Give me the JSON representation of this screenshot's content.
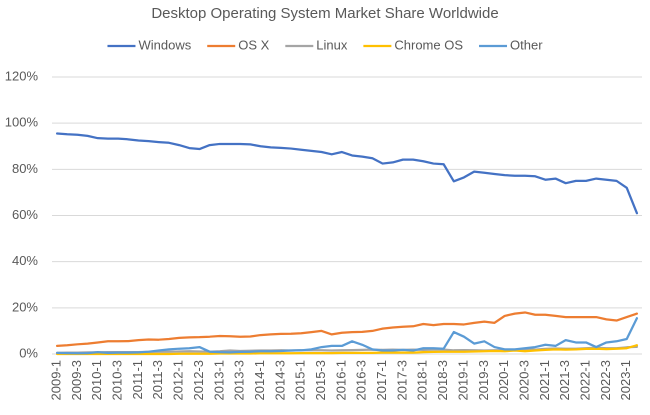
{
  "chart_data": {
    "type": "line",
    "title": "Desktop Operating System Market Share Worldwide",
    "categories": [
      "2009-1",
      null,
      "2009-3",
      null,
      "2010-1",
      null,
      "2010-3",
      null,
      "2011-1",
      null,
      "2011-3",
      null,
      "2012-1",
      null,
      "2012-3",
      null,
      "2013-1",
      null,
      "2013-3",
      null,
      "2014-1",
      null,
      "2014-3",
      null,
      "2015-1",
      null,
      "2015-3",
      null,
      "2016-1",
      null,
      "2016-3",
      null,
      "2017-1",
      null,
      "2017-3",
      null,
      "2018-1",
      null,
      "2018-3",
      null,
      "2019-1",
      null,
      "2019-3",
      null,
      "2020-1",
      null,
      "2020-3",
      null,
      "2021-1",
      null,
      "2021-3",
      null,
      "2022-1",
      null,
      "2022-3",
      null,
      "2023-1",
      null
    ],
    "series": [
      {
        "name": "Windows",
        "color": "#4472c4",
        "values": [
          95.5,
          95.2,
          95,
          94.5,
          93.5,
          93.3,
          93.3,
          93,
          92.5,
          92.2,
          91.8,
          91.5,
          90.5,
          89.2,
          88.8,
          90.5,
          91,
          91,
          91,
          90.8,
          90,
          89.5,
          89.3,
          89,
          88.5,
          88,
          87.5,
          86.5,
          87.5,
          86,
          85.5,
          84.8,
          82.5,
          83,
          84.2,
          84.2,
          83.5,
          82.5,
          82.2,
          74.8,
          76.5,
          79,
          78.5,
          78,
          77.5,
          77.2,
          77.2,
          77,
          75.5,
          76,
          74,
          75,
          75,
          76,
          75.5,
          75,
          72,
          61
        ]
      },
      {
        "name": "OS X",
        "color": "#ed7d31",
        "values": [
          3.5,
          3.8,
          4.2,
          4.5,
          5,
          5.5,
          5.5,
          5.6,
          6,
          6.3,
          6.2,
          6.5,
          7,
          7.2,
          7.3,
          7.5,
          7.8,
          7.7,
          7.5,
          7.6,
          8.2,
          8.5,
          8.7,
          8.8,
          9,
          9.5,
          10,
          8.5,
          9.2,
          9.5,
          9.6,
          10,
          11,
          11.5,
          11.8,
          12,
          13,
          12.5,
          13,
          13,
          12.8,
          13.5,
          14,
          13.5,
          16.5,
          17.5,
          18,
          17,
          17,
          16.5,
          16,
          16,
          16,
          16,
          15,
          14.5,
          16,
          17.5
        ]
      },
      {
        "name": "Linux",
        "color": "#a5a5a5",
        "values": [
          0.5,
          0.6,
          0.6,
          0.7,
          0.7,
          0.8,
          0.8,
          0.8,
          0.8,
          0.9,
          1,
          1,
          1.1,
          1.2,
          1.1,
          1,
          1.2,
          1.5,
          1.3,
          1.4,
          1.5,
          1.5,
          1.6,
          1.5,
          1.6,
          1.7,
          1.6,
          1.5,
          1.6,
          1.7,
          1.8,
          1.9,
          1.8,
          1.9,
          1.8,
          1.9,
          1.8,
          1.9,
          1.9,
          1.6,
          1.7,
          1.6,
          1.5,
          1.6,
          1.7,
          1.9,
          1.9,
          1.9,
          2.2,
          2.4,
          2.3,
          2.3,
          2.5,
          2.7,
          2.5,
          2.5,
          2.9,
          3.1
        ]
      },
      {
        "name": "Chrome OS",
        "color": "#ffc000",
        "values": [
          0,
          0,
          0,
          0,
          0,
          0,
          0,
          0,
          0,
          0,
          0,
          0,
          0.1,
          0.1,
          0.1,
          0.1,
          0.2,
          0.2,
          0.2,
          0.2,
          0.3,
          0.3,
          0.3,
          0.3,
          0.4,
          0.4,
          0.4,
          0.4,
          0.5,
          0.5,
          0.5,
          0.5,
          0.6,
          0.6,
          0.6,
          0.6,
          0.8,
          0.9,
          1,
          1,
          1,
          1.1,
          1.2,
          1.3,
          1.2,
          1.5,
          1.2,
          1.5,
          1.8,
          2,
          1.9,
          2,
          2.2,
          2.3,
          2.1,
          2.3,
          2.5,
          3.8
        ]
      },
      {
        "name": "Other",
        "color": "#5b9bd5",
        "values": [
          0.5,
          0.4,
          0.3,
          0.4,
          0.8,
          0.5,
          0.6,
          0.6,
          0.7,
          1,
          1.5,
          2,
          2.3,
          2.5,
          3,
          1,
          0.8,
          0.7,
          0.9,
          1,
          1.2,
          1.2,
          1.3,
          1.5,
          1.6,
          2,
          3,
          3.5,
          3.5,
          5.5,
          4,
          2,
          1.5,
          1.5,
          1.8,
          1.5,
          2.5,
          2.5,
          2.3,
          9.5,
          7.5,
          4.5,
          5.5,
          3,
          2,
          2,
          2.5,
          3,
          4,
          3.5,
          6,
          5,
          5,
          3,
          5,
          5.5,
          6.5,
          15.5
        ]
      }
    ],
    "ylim": [
      0,
      120
    ],
    "yticks": [
      {
        "value": 0,
        "label": "0%"
      },
      {
        "value": 20,
        "label": "20%"
      },
      {
        "value": 40,
        "label": "40%"
      },
      {
        "value": 60,
        "label": "60%"
      },
      {
        "value": 80,
        "label": "80%"
      },
      {
        "value": 100,
        "label": "100%"
      },
      {
        "value": 120,
        "label": "120%"
      }
    ],
    "grid": true,
    "legend": "top"
  }
}
